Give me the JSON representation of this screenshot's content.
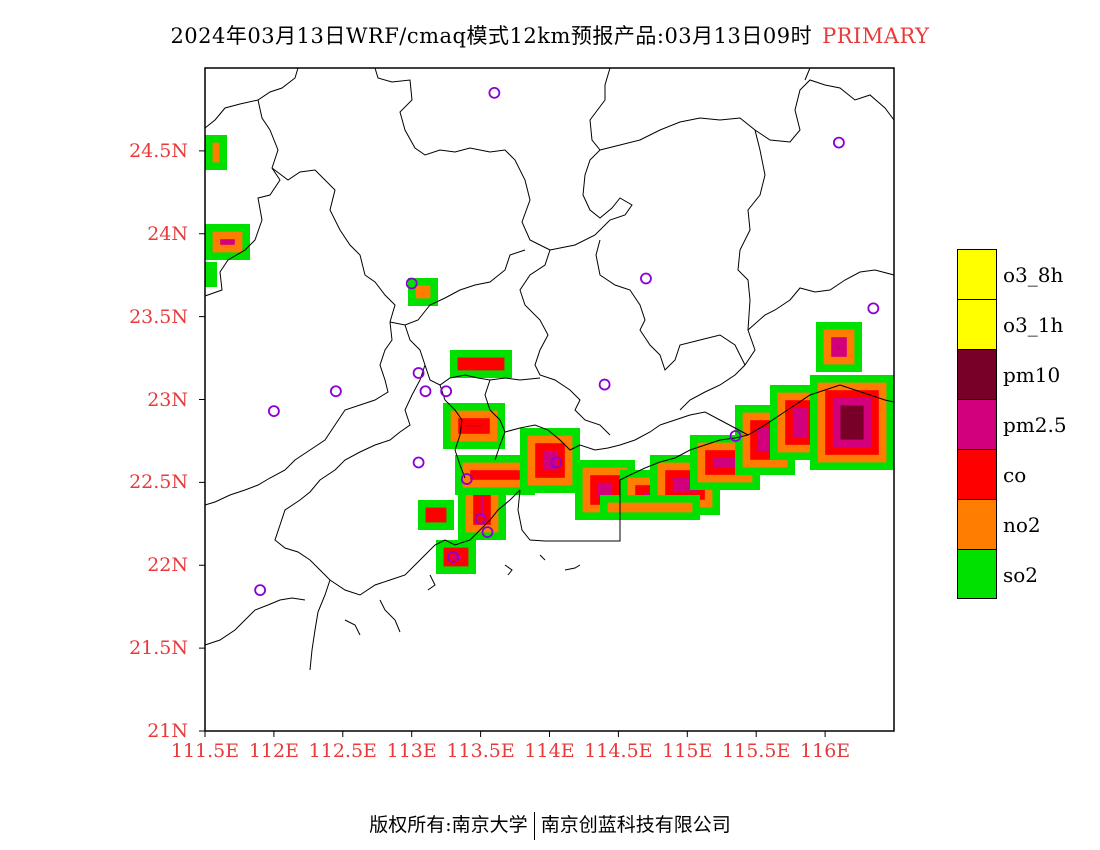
{
  "title": {
    "main": "2024年03月13日WRF/cmaq模式12km预报产品:03月13日09时",
    "tag": "PRIMARY",
    "tag_color": "#e83a3a"
  },
  "axes": {
    "lat_labels": [
      "24.5N",
      "24N",
      "23.5N",
      "23N",
      "22.5N",
      "22N",
      "21.5N",
      "21N"
    ],
    "lat_values": [
      24.5,
      24.0,
      23.5,
      23.0,
      22.5,
      22.0,
      21.5,
      21.0
    ],
    "lon_labels": [
      "111.5E",
      "112E",
      "112.5E",
      "113E",
      "113.5E",
      "114E",
      "114.5E",
      "115E",
      "115.5E",
      "116E"
    ],
    "lon_values": [
      111.5,
      112.0,
      112.5,
      113.0,
      113.5,
      114.0,
      114.5,
      115.0,
      115.5,
      116.0
    ],
    "lon_range": [
      111.5,
      116.5
    ],
    "lat_range": [
      21.0,
      25.0
    ]
  },
  "legend": [
    {
      "label": "o3_8h",
      "color": "#ffff00"
    },
    {
      "label": "o3_1h",
      "color": "#ffff00"
    },
    {
      "label": "pm10",
      "color": "#780028"
    },
    {
      "label": "pm2.5",
      "color": "#d2007d"
    },
    {
      "label": "co",
      "color": "#ff0000"
    },
    {
      "label": "no2",
      "color": "#ff7d00"
    },
    {
      "label": "so2",
      "color": "#00e100"
    }
  ],
  "stations": [
    [
      113.6,
      24.85
    ],
    [
      116.1,
      24.55
    ],
    [
      114.7,
      23.73
    ],
    [
      116.35,
      23.55
    ],
    [
      113.0,
      23.7
    ],
    [
      113.05,
      23.16
    ],
    [
      112.45,
      23.05
    ],
    [
      113.1,
      23.05
    ],
    [
      113.25,
      23.05
    ],
    [
      114.4,
      23.09
    ],
    [
      112.0,
      22.93
    ],
    [
      113.05,
      22.62
    ],
    [
      113.4,
      22.52
    ],
    [
      114.05,
      22.62
    ],
    [
      115.35,
      22.78
    ],
    [
      113.5,
      22.28
    ],
    [
      113.55,
      22.2
    ],
    [
      111.9,
      21.85
    ],
    [
      113.3,
      22.05
    ]
  ],
  "footer": {
    "left": "版权所有:南京大学",
    "right": "南京创蓝科技有限公司"
  }
}
